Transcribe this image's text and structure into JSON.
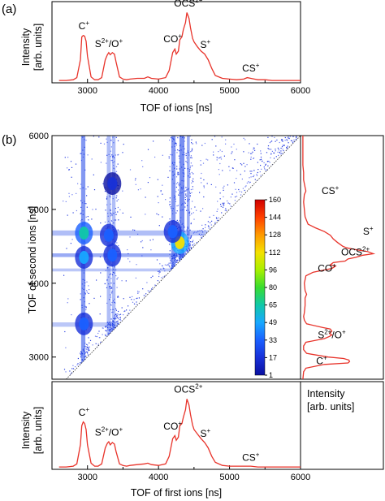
{
  "panel_a": {
    "label": "(a)"
  },
  "panel_b": {
    "label": "(b)"
  },
  "chart_data": [
    {
      "type": "line",
      "id": "top-spectrum",
      "xlabel": "TOF of ions [ns]",
      "ylabel_line1": "Intensity",
      "ylabel_line2": "[arb. units]",
      "xlim": [
        2500,
        6000
      ],
      "xticks": [
        3000,
        4000,
        5000,
        6000
      ],
      "x": [
        2600,
        2700,
        2800,
        2850,
        2900,
        2920,
        2940,
        2960,
        2980,
        3000,
        3050,
        3100,
        3150,
        3200,
        3250,
        3280,
        3300,
        3320,
        3350,
        3380,
        3400,
        3450,
        3500,
        3550,
        3600,
        3700,
        3800,
        3850,
        3900,
        4000,
        4100,
        4150,
        4200,
        4230,
        4250,
        4280,
        4300,
        4330,
        4350,
        4380,
        4400,
        4430,
        4450,
        4480,
        4500,
        4550,
        4600,
        4650,
        4700,
        4750,
        4800,
        4900,
        5000,
        5100,
        5200,
        5250,
        5300,
        5350,
        5400,
        5500,
        5600,
        5700,
        5800,
        5900,
        6000
      ],
      "y": [
        0.01,
        0.01,
        0.02,
        0.05,
        0.3,
        0.62,
        0.64,
        0.63,
        0.56,
        0.35,
        0.06,
        0.02,
        0.02,
        0.05,
        0.3,
        0.37,
        0.4,
        0.37,
        0.4,
        0.38,
        0.28,
        0.06,
        0.03,
        0.02,
        0.03,
        0.04,
        0.04,
        0.06,
        0.04,
        0.03,
        0.05,
        0.15,
        0.4,
        0.45,
        0.38,
        0.42,
        0.58,
        0.62,
        0.72,
        0.82,
        0.96,
        0.88,
        0.75,
        0.6,
        0.55,
        0.48,
        0.42,
        0.38,
        0.3,
        0.18,
        0.08,
        0.04,
        0.03,
        0.02,
        0.03,
        0.05,
        0.04,
        0.03,
        0.02,
        0.02,
        0.01,
        0.01,
        0.01,
        0.01,
        0.01
      ],
      "peaks": [
        {
          "base": "C",
          "sup": "+",
          "x": 2950,
          "y": 0.68
        },
        {
          "base": "S",
          "sup": "2+",
          "tail_base": "/O",
          "tail_sup": "+",
          "x": 3300,
          "y": 0.43
        },
        {
          "base": "CO",
          "sup": "+",
          "x": 4200,
          "y": 0.5
        },
        {
          "base": "OCS",
          "sup": "2+",
          "x": 4420,
          "y": 1.0
        },
        {
          "base": "S",
          "sup": "+",
          "x": 4660,
          "y": 0.42
        },
        {
          "base": "CS",
          "sup": "+",
          "x": 5300,
          "y": 0.09
        }
      ]
    },
    {
      "type": "heatmap",
      "id": "covariance-map",
      "xlim": [
        2500,
        6000
      ],
      "ylim": [
        2700,
        6000
      ],
      "ylabel": "TOF of second ions [ns]",
      "yticks": [
        3000,
        4000,
        5000,
        6000
      ],
      "colorbar_ticks": [
        "160",
        "144",
        "128",
        "112",
        "96",
        "80",
        "65",
        "49",
        "33",
        "17",
        "1"
      ],
      "colorbar_colors": [
        "#d00000",
        "#ff4000",
        "#ff9a00",
        "#f4e000",
        "#a8f000",
        "#38dc30",
        "#10c8a8",
        "#18a8ff",
        "#1a60ff",
        "#1830d8",
        "#0a10a0"
      ],
      "hot_spots": [
        {
          "x": 2950,
          "y": 4680,
          "v": 60
        },
        {
          "x": 2950,
          "y": 4350,
          "v": 45
        },
        {
          "x": 3300,
          "y": 4650,
          "v": 35
        },
        {
          "x": 3350,
          "y": 4380,
          "v": 35
        },
        {
          "x": 4300,
          "y": 4550,
          "v": 110
        },
        {
          "x": 4200,
          "y": 4700,
          "v": 40
        },
        {
          "x": 2950,
          "y": 3450,
          "v": 25
        },
        {
          "x": 3350,
          "y": 5350,
          "v": 15
        }
      ]
    },
    {
      "type": "line",
      "id": "side-spectrum",
      "ylabel": "Intensity",
      "xlabel": "[arb. units]",
      "peaks": [
        {
          "base": "CS",
          "sup": "+",
          "t": 5250
        },
        {
          "base": "S",
          "sup": "+",
          "t": 4700
        },
        {
          "base": "OCS",
          "sup": "2+",
          "t": 4420
        },
        {
          "base": "CO",
          "sup": "+",
          "t": 4200
        },
        {
          "base": "S",
          "sup": "2+",
          "tail_base": "/O",
          "tail_sup": "+",
          "t": 3300
        },
        {
          "base": "C",
          "sup": "+",
          "t": 2950
        }
      ]
    },
    {
      "type": "line",
      "id": "bottom-spectrum",
      "xlabel": "TOF of first ions [ns]",
      "ylabel_line1": "Intensity",
      "ylabel_line2": "[arb. units]",
      "xlim": [
        2500,
        6000
      ],
      "xticks": [
        3000,
        4000,
        5000,
        6000
      ],
      "x": [
        2600,
        2700,
        2800,
        2850,
        2900,
        2920,
        2940,
        2960,
        2980,
        3000,
        3050,
        3100,
        3150,
        3200,
        3250,
        3280,
        3300,
        3320,
        3350,
        3380,
        3400,
        3450,
        3500,
        3550,
        3600,
        3700,
        3800,
        3850,
        3900,
        4000,
        4100,
        4150,
        4200,
        4230,
        4250,
        4280,
        4300,
        4330,
        4350,
        4380,
        4400,
        4430,
        4450,
        4480,
        4500,
        4550,
        4600,
        4650,
        4700,
        4750,
        4800,
        4900,
        5000,
        5100,
        5200,
        5300,
        5400,
        5500,
        5600,
        5700,
        5800,
        5900,
        6000
      ],
      "y": [
        0.01,
        0.01,
        0.02,
        0.05,
        0.3,
        0.55,
        0.6,
        0.58,
        0.5,
        0.3,
        0.06,
        0.02,
        0.02,
        0.05,
        0.26,
        0.32,
        0.34,
        0.3,
        0.33,
        0.31,
        0.22,
        0.05,
        0.03,
        0.02,
        0.03,
        0.04,
        0.05,
        0.06,
        0.04,
        0.03,
        0.05,
        0.15,
        0.38,
        0.42,
        0.36,
        0.4,
        0.55,
        0.58,
        0.66,
        0.76,
        0.9,
        0.82,
        0.7,
        0.56,
        0.5,
        0.44,
        0.38,
        0.33,
        0.26,
        0.15,
        0.07,
        0.03,
        0.02,
        0.02,
        0.02,
        0.02,
        0.01,
        0.01,
        0.01,
        0.01,
        0.01,
        0.01,
        0.01
      ],
      "peaks": [
        {
          "base": "C",
          "sup": "+",
          "x": 2950,
          "y": 0.64
        },
        {
          "base": "S",
          "sup": "2+",
          "tail_base": "/O",
          "tail_sup": "+",
          "x": 3300,
          "y": 0.38
        },
        {
          "base": "CO",
          "sup": "+",
          "x": 4200,
          "y": 0.46
        },
        {
          "base": "OCS",
          "sup": "2+",
          "x": 4420,
          "y": 0.94
        },
        {
          "base": "S",
          "sup": "+",
          "x": 4660,
          "y": 0.36
        },
        {
          "base": "CS",
          "sup": "+",
          "x": 5300,
          "y": 0.05
        }
      ]
    }
  ]
}
